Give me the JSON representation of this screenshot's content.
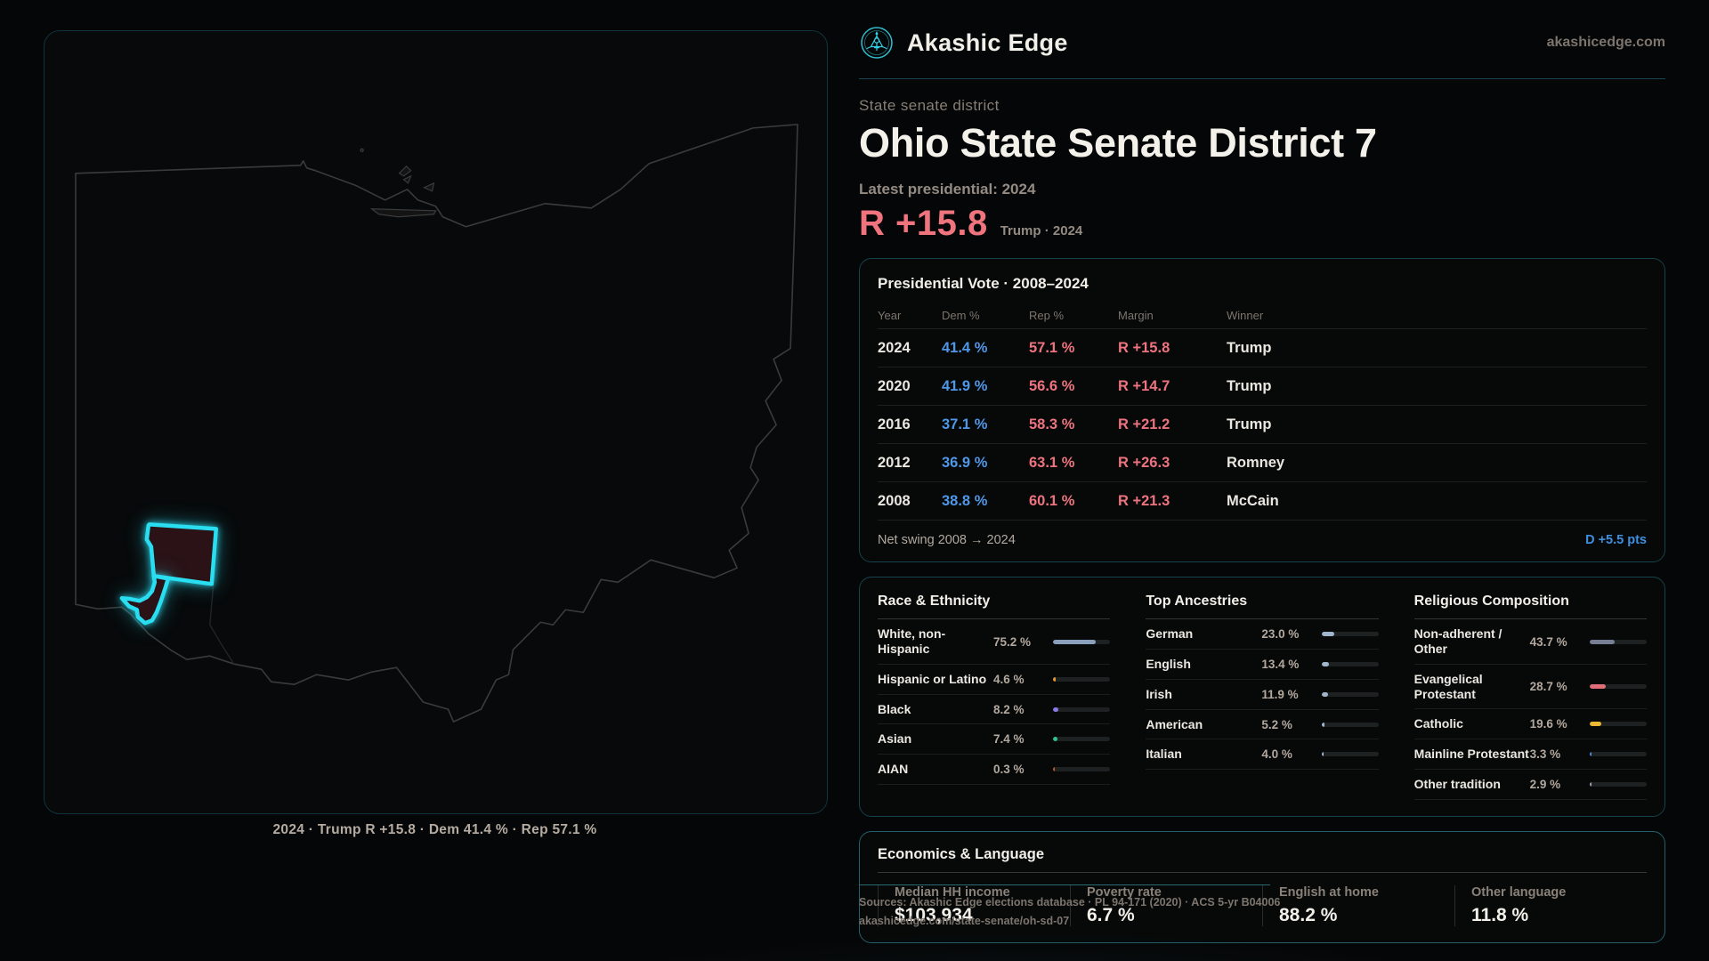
{
  "brand": {
    "name": "Akashic Edge",
    "site": "akashicedge.com",
    "accent": "#35d3e6"
  },
  "page": {
    "eyebrow": "State senate district",
    "title": "Ohio State Senate District 7",
    "latest_label": "Latest presidential: 2024",
    "headline_margin": "R +15.8",
    "headline_margin_sub": "Trump · 2024",
    "margin_color": "#f0747e"
  },
  "map": {
    "caption": "2024 · Trump R +15.8 · Dem 41.4 % · Rep 57.1 %",
    "district_outline_color": "#2adef2",
    "district_fill_color": "#2a1216",
    "state_outline_color": "#3b3b3b"
  },
  "presidential": {
    "heading": "Presidential Vote · 2008–2024",
    "columns": [
      "Year",
      "Dem %",
      "Rep %",
      "Margin",
      "Winner"
    ],
    "rows": [
      {
        "year": "2024",
        "dem": "41.4 %",
        "rep": "57.1 %",
        "margin": "R +15.8",
        "winner": "Trump"
      },
      {
        "year": "2020",
        "dem": "41.9 %",
        "rep": "56.6 %",
        "margin": "R +14.7",
        "winner": "Trump"
      },
      {
        "year": "2016",
        "dem": "37.1 %",
        "rep": "58.3 %",
        "margin": "R +21.2",
        "winner": "Trump"
      },
      {
        "year": "2012",
        "dem": "36.9 %",
        "rep": "63.1 %",
        "margin": "R +26.3",
        "winner": "Romney"
      },
      {
        "year": "2008",
        "dem": "38.8 %",
        "rep": "60.1 %",
        "margin": "R +21.3",
        "winner": "McCain"
      }
    ],
    "net_swing_label": "Net swing 2008 → 2024",
    "net_swing_value": "D +5.5 pts",
    "dem_color": "#4f97e8",
    "rep_color": "#ee737e",
    "swing_color": "#3f8fe0"
  },
  "demographics": {
    "race": {
      "heading": "Race & Ethnicity",
      "items": [
        {
          "label": "White, non-Hispanic",
          "value": "75.2 %",
          "pct": 75.2,
          "color": "#8ba0bd"
        },
        {
          "label": "Hispanic or Latino",
          "value": "4.6 %",
          "pct": 4.6,
          "color": "#e8982f"
        },
        {
          "label": "Black",
          "value": "8.2 %",
          "pct": 8.2,
          "color": "#8878e8"
        },
        {
          "label": "Asian",
          "value": "7.4 %",
          "pct": 7.4,
          "color": "#2ec48f"
        },
        {
          "label": "AIAN",
          "value": "0.3 %",
          "pct": 0.3,
          "color": "#c05a2a"
        }
      ]
    },
    "ancestries": {
      "heading": "Top Ancestries",
      "items": [
        {
          "label": "German",
          "value": "23.0 %",
          "pct": 23.0,
          "color": "#9fb6cc"
        },
        {
          "label": "English",
          "value": "13.4 %",
          "pct": 13.4,
          "color": "#9fb6cc"
        },
        {
          "label": "Irish",
          "value": "11.9 %",
          "pct": 11.9,
          "color": "#9fb6cc"
        },
        {
          "label": "American",
          "value": "5.2 %",
          "pct": 5.2,
          "color": "#9fb6cc"
        },
        {
          "label": "Italian",
          "value": "4.0 %",
          "pct": 4.0,
          "color": "#9fb6cc"
        }
      ]
    },
    "religion": {
      "heading": "Religious Composition",
      "items": [
        {
          "label": "Non-adherent / Other",
          "value": "43.7 %",
          "pct": 43.7,
          "color": "#767f93"
        },
        {
          "label": "Evangelical Protestant",
          "value": "28.7 %",
          "pct": 28.7,
          "color": "#e06e78"
        },
        {
          "label": "Catholic",
          "value": "19.6 %",
          "pct": 19.6,
          "color": "#eab832"
        },
        {
          "label": "Mainline Protestant",
          "value": "3.3 %",
          "pct": 3.3,
          "color": "#4a8fd4"
        },
        {
          "label": "Other tradition",
          "value": "2.9 %",
          "pct": 2.9,
          "color": "#9aa1aa"
        }
      ]
    }
  },
  "economics": {
    "heading": "Economics & Language",
    "stats": [
      {
        "label": "Median HH income",
        "value": "$103,934"
      },
      {
        "label": "Poverty rate",
        "value": "6.7 %"
      },
      {
        "label": "English at home",
        "value": "88.2 %"
      },
      {
        "label": "Other language",
        "value": "11.8 %"
      }
    ]
  },
  "sources": {
    "line1": "Sources: Akashic Edge elections database · PL 94-171 (2020) · ACS 5-yr B04006",
    "line2": "akashicedge.com/state-senate/oh-sd-07"
  }
}
